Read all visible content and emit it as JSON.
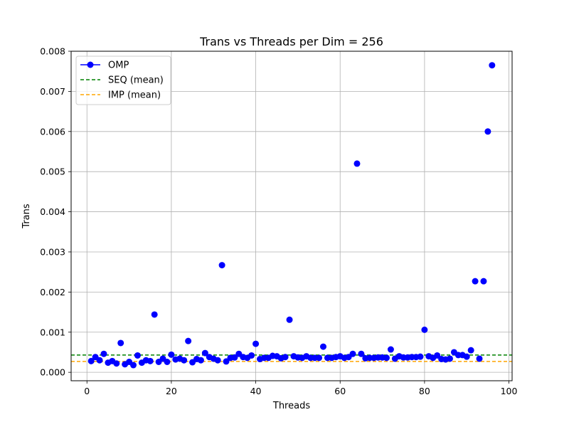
{
  "chart_data": {
    "type": "scatter",
    "title": "Trans vs Threads per Dim = 256",
    "xlabel": "Threads",
    "ylabel": "Trans",
    "xlim": [
      -3.75,
      100.75
    ],
    "ylim": [
      -0.00021,
      0.008
    ],
    "xticks": [
      0,
      20,
      40,
      60,
      80,
      100
    ],
    "xtick_labels": [
      "0",
      "20",
      "40",
      "60",
      "80",
      "100"
    ],
    "yticks": [
      0.0,
      0.001,
      0.002,
      0.003,
      0.004,
      0.005,
      0.006,
      0.007,
      0.008
    ],
    "ytick_labels": [
      "0.000",
      "0.001",
      "0.002",
      "0.003",
      "0.004",
      "0.005",
      "0.006",
      "0.007",
      "0.008"
    ],
    "grid": true,
    "legend_position": "upper-left",
    "series": [
      {
        "name": "OMP",
        "style": "markers",
        "color": "#0000ff",
        "x": [
          1,
          2,
          3,
          4,
          5,
          6,
          7,
          8,
          9,
          10,
          11,
          12,
          13,
          14,
          15,
          16,
          17,
          18,
          19,
          20,
          21,
          22,
          23,
          24,
          25,
          26,
          27,
          28,
          29,
          30,
          31,
          32,
          33,
          34,
          35,
          36,
          37,
          38,
          39,
          40,
          41,
          42,
          43,
          44,
          45,
          46,
          47,
          48,
          49,
          50,
          51,
          52,
          53,
          54,
          55,
          56,
          57,
          58,
          59,
          60,
          61,
          62,
          63,
          64,
          65,
          66,
          67,
          68,
          69,
          70,
          71,
          72,
          73,
          74,
          75,
          76,
          77,
          78,
          79,
          80,
          81,
          82,
          83,
          84,
          85,
          86,
          87,
          88,
          89,
          90,
          91,
          92,
          93,
          94,
          95,
          96
        ],
        "y": [
          0.00028,
          0.00038,
          0.0003,
          0.00046,
          0.00024,
          0.00028,
          0.00022,
          0.00073,
          0.0002,
          0.00026,
          0.00018,
          0.00042,
          0.00024,
          0.0003,
          0.00028,
          0.00144,
          0.00026,
          0.00034,
          0.00026,
          0.00044,
          0.00032,
          0.00034,
          0.0003,
          0.00078,
          0.00025,
          0.00033,
          0.0003,
          0.00048,
          0.00038,
          0.00034,
          0.0003,
          0.00267,
          0.00027,
          0.00036,
          0.00037,
          0.00046,
          0.00038,
          0.00036,
          0.00042,
          0.00071,
          0.00033,
          0.00036,
          0.00036,
          0.00041,
          0.0004,
          0.00035,
          0.00038,
          0.00131,
          0.0004,
          0.00037,
          0.00036,
          0.0004,
          0.00036,
          0.00036,
          0.00036,
          0.00064,
          0.00036,
          0.00036,
          0.00038,
          0.0004,
          0.00036,
          0.00038,
          0.00046,
          0.0052,
          0.00046,
          0.00035,
          0.00036,
          0.00036,
          0.00037,
          0.00037,
          0.00036,
          0.00057,
          0.00034,
          0.0004,
          0.00037,
          0.00037,
          0.00038,
          0.00038,
          0.00039,
          0.00106,
          0.0004,
          0.00036,
          0.00042,
          0.00033,
          0.00032,
          0.00034,
          0.0005,
          0.00043,
          0.00043,
          0.00039,
          0.00055,
          0.00227,
          0.00034,
          0.00227,
          0.006,
          0.00765
        ]
      },
      {
        "name": "SEQ (mean)",
        "style": "dashed-line",
        "color": "#008000",
        "y": 0.00043
      },
      {
        "name": "IMP (mean)",
        "style": "dashed-line",
        "color": "#ffa500",
        "y": 0.00027
      }
    ]
  }
}
